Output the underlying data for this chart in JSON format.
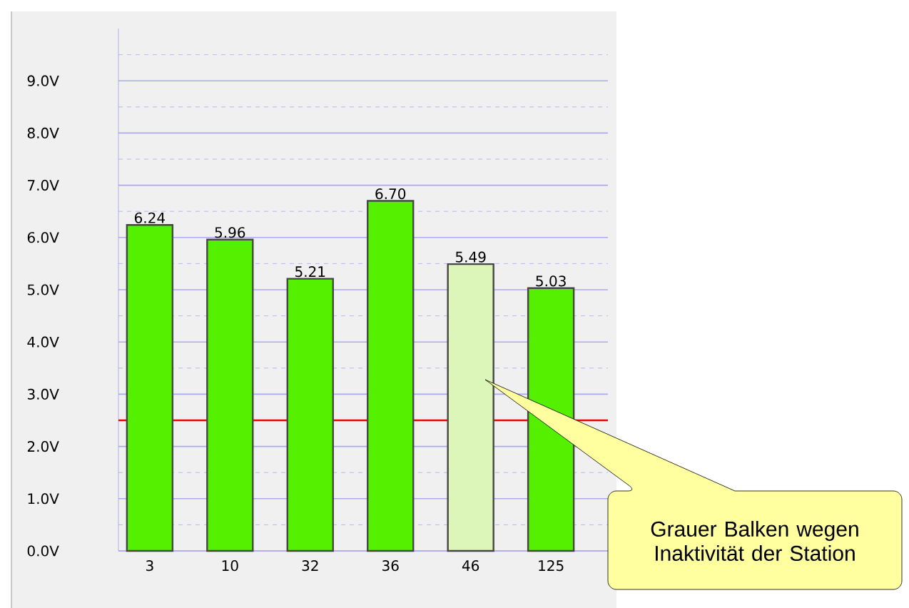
{
  "chart_data": {
    "type": "bar",
    "categories": [
      "3",
      "10",
      "32",
      "36",
      "46",
      "125"
    ],
    "values": [
      6.24,
      5.96,
      5.21,
      6.7,
      5.49,
      5.03
    ],
    "colors": [
      "#55f000",
      "#55f000",
      "#55f000",
      "#55f000",
      "#dcf5b8",
      "#55f000"
    ],
    "value_labels": [
      "6.24",
      "5.96",
      "5.21",
      "6.70",
      "5.49",
      "5.03"
    ],
    "ylim": [
      0,
      10
    ],
    "yticks": [
      {
        "value": 0,
        "label": "0.0V"
      },
      {
        "value": 1,
        "label": "1.0V"
      },
      {
        "value": 2,
        "label": "2.0V"
      },
      {
        "value": 3,
        "label": "3.0V"
      },
      {
        "value": 4,
        "label": "4.0V"
      },
      {
        "value": 5,
        "label": "5.0V"
      },
      {
        "value": 6,
        "label": "6.0V"
      },
      {
        "value": 7,
        "label": "7.0V"
      },
      {
        "value": 8,
        "label": "8.0V"
      },
      {
        "value": 9,
        "label": "9.0V"
      },
      {
        "value": 0.5,
        "label": null
      },
      {
        "value": 1.5,
        "label": null
      },
      {
        "value": 2.5,
        "label": null
      },
      {
        "value": 3.5,
        "label": null
      },
      {
        "value": 4.5,
        "label": null
      },
      {
        "value": 5.5,
        "label": null
      },
      {
        "value": 6.5,
        "label": null
      },
      {
        "value": 7.5,
        "label": null
      },
      {
        "value": 8.5,
        "label": null
      },
      {
        "value": 9.5,
        "label": null
      }
    ],
    "grid": "y",
    "ref_lines": [
      {
        "axis": "y",
        "value": 2.5,
        "color": "#ee0000"
      }
    ],
    "annotations": [
      "Grauer Balken wegen Inaktivität der Station"
    ]
  }
}
